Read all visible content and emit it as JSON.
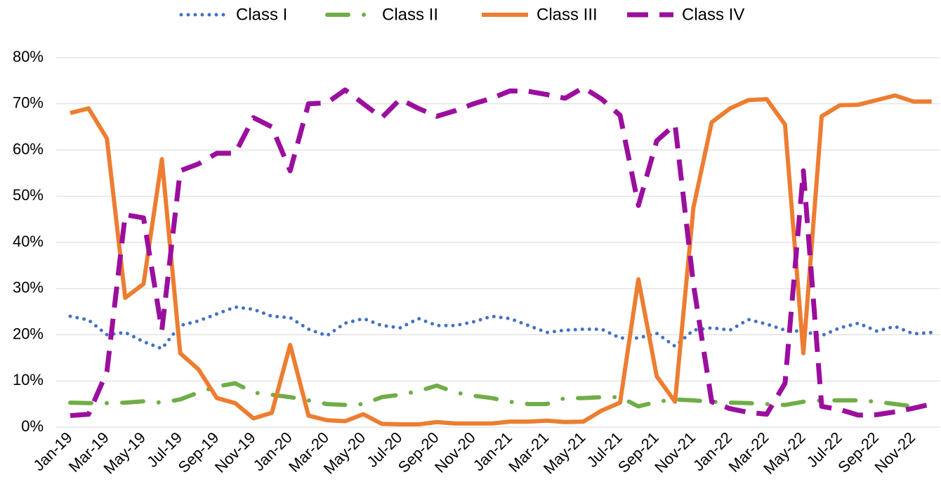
{
  "chart_data": {
    "type": "line",
    "categories": [
      "Jan-19",
      null,
      "Mar-19",
      null,
      "May-19",
      null,
      "Jul-19",
      null,
      "Sep-19",
      null,
      "Nov-19",
      null,
      "Jan-20",
      null,
      "Mar-20",
      null,
      "May-20",
      null,
      "Jul-20",
      null,
      "Sep-20",
      null,
      "Nov-20",
      null,
      "Jan-21",
      null,
      "Mar-21",
      null,
      "May-21",
      null,
      "Jul-21",
      null,
      "Sep-21",
      null,
      "Nov-21",
      null,
      "Jan-22",
      null,
      "Mar-22",
      null,
      "May-22",
      null,
      "Jul-22",
      null,
      "Sep-22",
      null,
      "Nov-22",
      null
    ],
    "series": [
      {
        "name": "Class I",
        "color": "#4472c4",
        "line_style": "dotted",
        "values": [
          24,
          23.2,
          20,
          20.5,
          18.5,
          17,
          22,
          23,
          24.5,
          26,
          25.5,
          24,
          23.7,
          21.2,
          19.8,
          22.5,
          23.5,
          22,
          21.5,
          23.5,
          22,
          22,
          22.8,
          24,
          23.5,
          22,
          20.5,
          21,
          21.2,
          21.2,
          19.3,
          19.3,
          20.3,
          17.5,
          21,
          21.5,
          21,
          23.3,
          22.3,
          21,
          20.7,
          19.8,
          21.5,
          22.5,
          20.8,
          21.8,
          20.2,
          20.5
        ]
      },
      {
        "name": "Class II",
        "color": "#70ad47",
        "line_style": "dash-dot",
        "values": [
          5.3,
          5.2,
          5.2,
          5.3,
          5.6,
          5.3,
          6,
          7.5,
          8.8,
          9.5,
          7.5,
          7,
          6.5,
          5.8,
          5,
          4.8,
          5,
          6.5,
          7,
          7.8,
          9,
          7.5,
          6.8,
          6.3,
          5.5,
          5,
          5,
          6.3,
          6.3,
          6.5,
          6.5,
          4.5,
          5.5,
          6,
          5.8,
          5.5,
          5.3,
          5.2,
          5,
          4.8,
          5.5,
          5.8,
          5.8,
          5.8,
          5.5,
          5,
          4.5,
          4.5
        ]
      },
      {
        "name": "Class III",
        "color": "#ed7d31",
        "line_style": "solid",
        "values": [
          68,
          69,
          62.5,
          28,
          31,
          58,
          16,
          12.5,
          6.3,
          5.2,
          1.9,
          3.1,
          17.8,
          2.5,
          1.5,
          1.3,
          2.8,
          0.7,
          0.6,
          0.6,
          1.1,
          0.8,
          0.8,
          0.8,
          1.2,
          1.2,
          1.4,
          1.1,
          1.2,
          3.6,
          5.3,
          32,
          11,
          5.5,
          47.5,
          66,
          69,
          70.8,
          71,
          65.5,
          16,
          67.3,
          69.7,
          69.8,
          70.8,
          71.8,
          70.5,
          70.5
        ]
      },
      {
        "name": "Class IV",
        "color": "#9b0e9e",
        "line_style": "dashed",
        "values": [
          2.5,
          2.8,
          12,
          46,
          45.3,
          21,
          55.5,
          57,
          59.3,
          59.3,
          67,
          65,
          55.5,
          70,
          70.2,
          73,
          70,
          67,
          71,
          69,
          67.3,
          68.5,
          70,
          71.2,
          72.8,
          72.7,
          72,
          71.2,
          73.5,
          71,
          67.5,
          48,
          62,
          65.5,
          31,
          5.5,
          4,
          3.2,
          2.8,
          9.5,
          55.5,
          4.5,
          3.8,
          2.6,
          2.7,
          3.3,
          4.1,
          5
        ]
      }
    ],
    "ylim": [
      0,
      80
    ],
    "yticks": [
      {
        "value": 0,
        "label": "0%"
      },
      {
        "value": 10,
        "label": "10%"
      },
      {
        "value": 20,
        "label": "20%"
      },
      {
        "value": 30,
        "label": "30%"
      },
      {
        "value": 40,
        "label": "40%"
      },
      {
        "value": 50,
        "label": "50%"
      },
      {
        "value": 60,
        "label": "60%"
      },
      {
        "value": 70,
        "label": "70%"
      },
      {
        "value": 80,
        "label": "80%"
      }
    ],
    "grid": true,
    "legend": "top"
  }
}
